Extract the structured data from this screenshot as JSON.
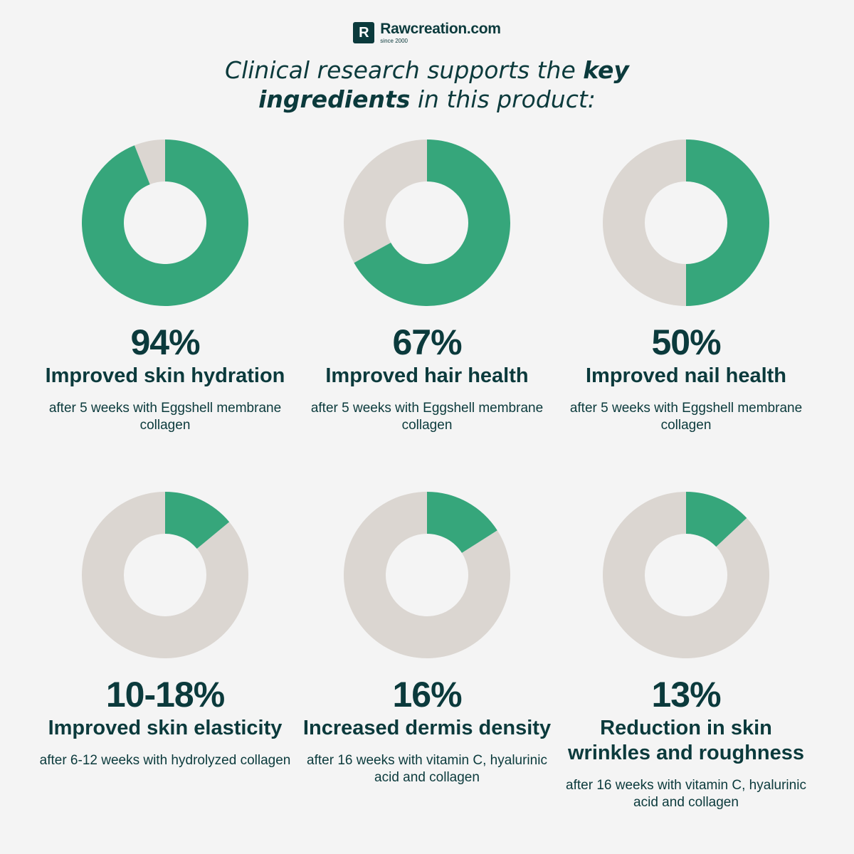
{
  "brand": {
    "name": "Rawcreation.com",
    "since": "since 2000",
    "logo_letter": "R"
  },
  "headline": {
    "part1": "Clinical research supports the ",
    "bold1": "key ingredients",
    "part2": " in this product:"
  },
  "colors": {
    "accent": "#36a67b",
    "rest": "#dbd6d1",
    "text": "#0b3a3c",
    "background": "#f4f4f4"
  },
  "chart_data": {
    "type": "pie",
    "variant": "donut",
    "items": [
      {
        "value": 94,
        "label": "94%",
        "metric": "Improved skin hydration",
        "note": "after 5 weeks with Eggshell membrane collagen"
      },
      {
        "value": 67,
        "label": "67%",
        "metric": "Improved hair health",
        "note": "after 5 weeks with Eggshell membrane collagen"
      },
      {
        "value": 50,
        "label": "50%",
        "metric": "Improved nail health",
        "note": "after 5 weeks with Eggshell membrane collagen"
      },
      {
        "value": 14,
        "label": "10-18%",
        "metric": "Improved skin elasticity",
        "note": "after 6-12 weeks with hydrolyzed collagen"
      },
      {
        "value": 16,
        "label": "16%",
        "metric": "Increased dermis density",
        "note": "after 16 weeks with vitamin C, hyalurinic acid and collagen"
      },
      {
        "value": 13,
        "label": "13%",
        "metric": "Reduction in skin wrinkles and roughness",
        "note": "after 16 weeks with vitamin C, hyalurinic acid and collagen"
      }
    ]
  }
}
